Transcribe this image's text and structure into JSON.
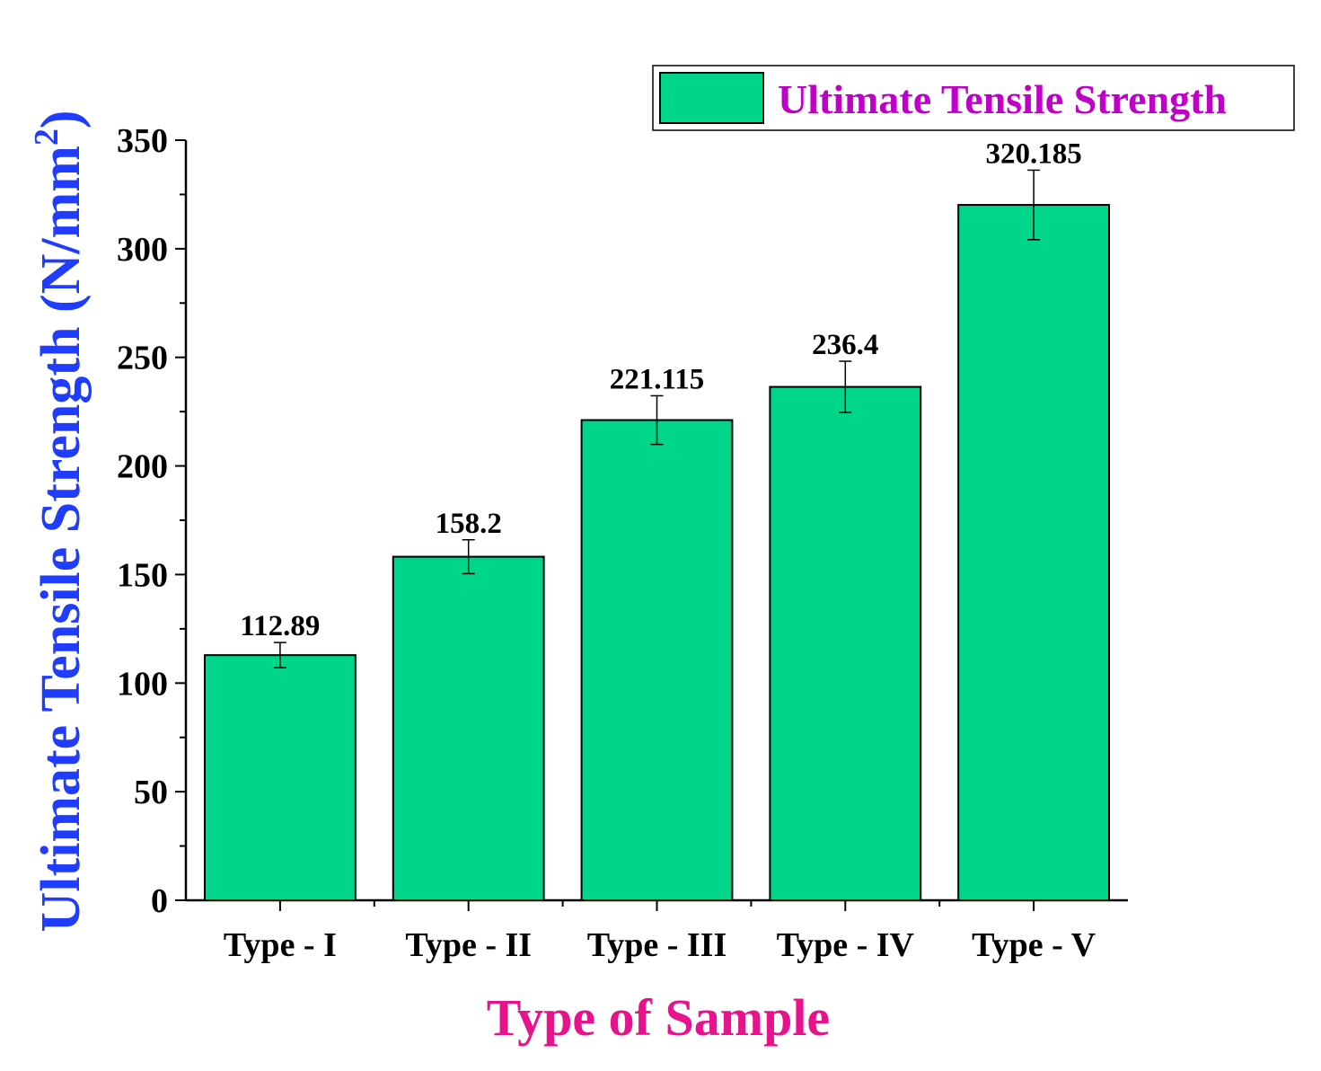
{
  "chart_data": {
    "type": "bar",
    "categories": [
      "Type - I",
      "Type - II",
      "Type - III",
      "Type - IV",
      "Type - V"
    ],
    "series": [
      {
        "name": "Ultimate Tensile Strength",
        "values": [
          112.89,
          158.2,
          221.115,
          236.4,
          320.185
        ],
        "errors": [
          5.8,
          7.8,
          11.2,
          11.8,
          16.0
        ],
        "labels": [
          "112.89",
          "158.2",
          "221.115",
          "236.4",
          "320.185"
        ]
      }
    ],
    "xlabel": "Type of Sample",
    "ylabel": "Ultimate Tensile Strength (N/mm",
    "ylabel_sup": "2",
    "ylabel_close": ")",
    "ylim": [
      0,
      350
    ],
    "yticks": [
      "0",
      "50",
      "100",
      "150",
      "200",
      "250",
      "300",
      "350"
    ],
    "ytick_values": [
      0,
      50,
      100,
      150,
      200,
      250,
      300,
      350
    ],
    "grid": false,
    "legend_position": "top-right",
    "colors": {
      "bar": "#00d68a",
      "xlabel": "#e8128c",
      "ylabel": "#1f3cff",
      "legend_text": "#c000c8"
    }
  }
}
